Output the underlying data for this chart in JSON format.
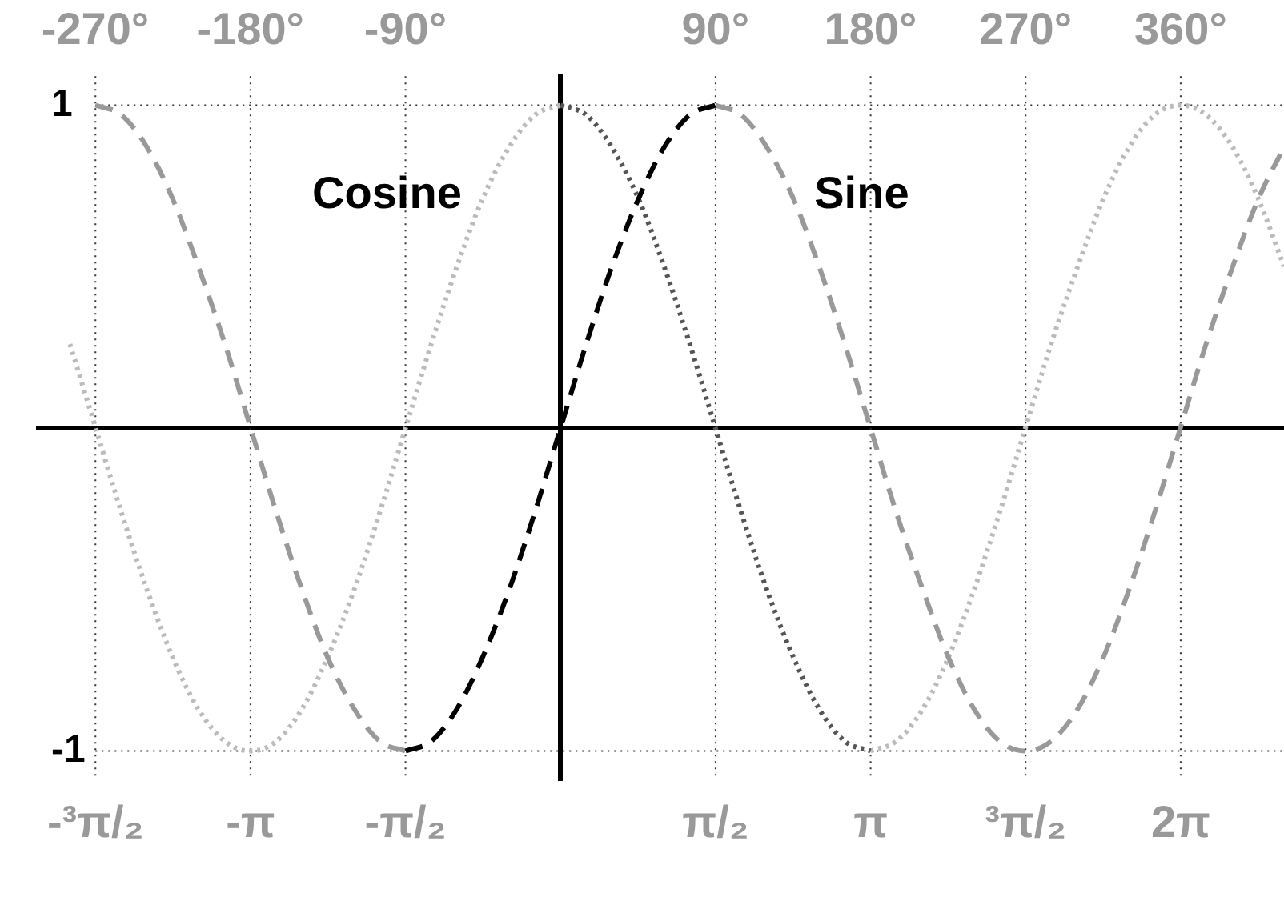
{
  "chart_data": {
    "type": "line",
    "series": [
      {
        "name": "Cosine",
        "color": "#bbbbbb",
        "line_style": "dotted",
        "x": [
          -4.97,
          -4.71,
          -4.45,
          -4.19,
          -3.93,
          -3.67,
          -3.4,
          -3.14,
          -2.88,
          -2.62,
          -2.36,
          -2.09,
          -1.83,
          -1.57,
          -1.31,
          -1.05,
          -0.79,
          -0.52,
          -0.26,
          0,
          0.26,
          0.52,
          0.79,
          1.05,
          1.31,
          1.57,
          1.83,
          2.09,
          2.36,
          2.62,
          2.88,
          3.14,
          3.4,
          3.67,
          3.93,
          4.19,
          4.45,
          4.71,
          4.97,
          5.24,
          5.5,
          5.76,
          6.02,
          6.28,
          6.54,
          6.81,
          7.07,
          7.33
        ],
        "values": [
          0.26,
          0,
          -0.26,
          -0.5,
          -0.71,
          -0.87,
          -0.97,
          -1,
          -0.97,
          -0.87,
          -0.71,
          -0.5,
          -0.26,
          0,
          0.26,
          0.5,
          0.71,
          0.87,
          0.97,
          1,
          null,
          null,
          null,
          null,
          null,
          null,
          null,
          null,
          null,
          null,
          null,
          -1,
          -0.97,
          -0.87,
          -0.71,
          -0.5,
          -0.26,
          0,
          0.26,
          0.5,
          0.71,
          0.87,
          0.97,
          1,
          0.97,
          0.87,
          0.71,
          0.5
        ]
      },
      {
        "name": "Sine",
        "color": "#999999",
        "line_style": "dashed",
        "x": [
          -4.71,
          -4.45,
          -4.19,
          -3.93,
          -3.67,
          -3.4,
          -3.14,
          -2.88,
          -2.62,
          -2.36,
          -2.09,
          -1.83,
          -1.57,
          -1.31,
          -1.05,
          -0.79,
          -0.52,
          -0.26,
          0,
          0.26,
          0.52,
          0.79,
          1.05,
          1.31,
          1.57,
          1.83,
          2.09,
          2.36,
          2.62,
          2.88,
          3.14,
          3.4,
          3.67,
          3.93,
          4.19,
          4.45,
          4.71,
          4.97,
          5.24,
          5.5,
          5.76,
          6.02,
          6.28,
          6.54,
          6.81,
          7.07,
          7.33
        ],
        "values": [
          1,
          0.97,
          0.87,
          0.71,
          0.5,
          0.26,
          0,
          -0.26,
          -0.5,
          -0.71,
          -0.87,
          -0.97,
          -1,
          null,
          null,
          null,
          null,
          null,
          null,
          null,
          null,
          null,
          null,
          null,
          1,
          0.97,
          0.87,
          0.71,
          0.5,
          0.26,
          0,
          -0.26,
          -0.5,
          -0.71,
          -0.87,
          -0.97,
          -1,
          -0.97,
          -0.87,
          -0.71,
          -0.5,
          -0.26,
          0,
          0.26,
          0.5,
          0.71,
          0.87
        ]
      },
      {
        "color": "#555555",
        "line_style": "dotted",
        "x": [
          0,
          0.26,
          0.52,
          0.79,
          1.05,
          1.31,
          1.57,
          1.83,
          2.09,
          2.36,
          2.62,
          2.88,
          3.14
        ],
        "values": [
          1,
          0.97,
          0.87,
          0.71,
          0.5,
          0.26,
          0,
          -0.26,
          -0.5,
          -0.71,
          -0.87,
          -0.97,
          -1
        ]
      },
      {
        "color": "#000000",
        "line_style": "dashed",
        "x": [
          -1.57,
          -1.31,
          -1.05,
          -0.79,
          -0.52,
          -0.26,
          0,
          0.26,
          0.52,
          0.79,
          1.05,
          1.31,
          1.57
        ],
        "values": [
          -1,
          -0.97,
          -0.87,
          -0.71,
          -0.5,
          -0.26,
          0,
          0.26,
          0.5,
          0.71,
          0.87,
          0.97,
          1
        ]
      }
    ],
    "xlim": [
      -5.29,
      7.33
    ],
    "xticks": [
      {
        "value": -4.712,
        "label": "-³π/₂"
      },
      {
        "value": -3.1416,
        "label": "-π"
      },
      {
        "value": -1.5708,
        "label": "-π/₂"
      },
      {
        "value": 1.5708,
        "label": "π/₂"
      },
      {
        "value": 3.1416,
        "label": "π"
      },
      {
        "value": 4.712,
        "label": "³π/₂"
      },
      {
        "value": 6.2832,
        "label": "2π"
      }
    ],
    "x2lim": [
      -303,
      420
    ],
    "x2ticks": [
      {
        "value": -270,
        "label": "-270°"
      },
      {
        "value": -180,
        "label": "-180°"
      },
      {
        "value": -90,
        "label": "-90°"
      },
      {
        "value": 90,
        "label": "90°"
      },
      {
        "value": 180,
        "label": "180°"
      },
      {
        "value": 270,
        "label": "270°"
      },
      {
        "value": 360,
        "label": "360°"
      }
    ],
    "ylim": [
      -1.09,
      1.09
    ],
    "yticks": [
      -1,
      1
    ],
    "grid": true
  }
}
